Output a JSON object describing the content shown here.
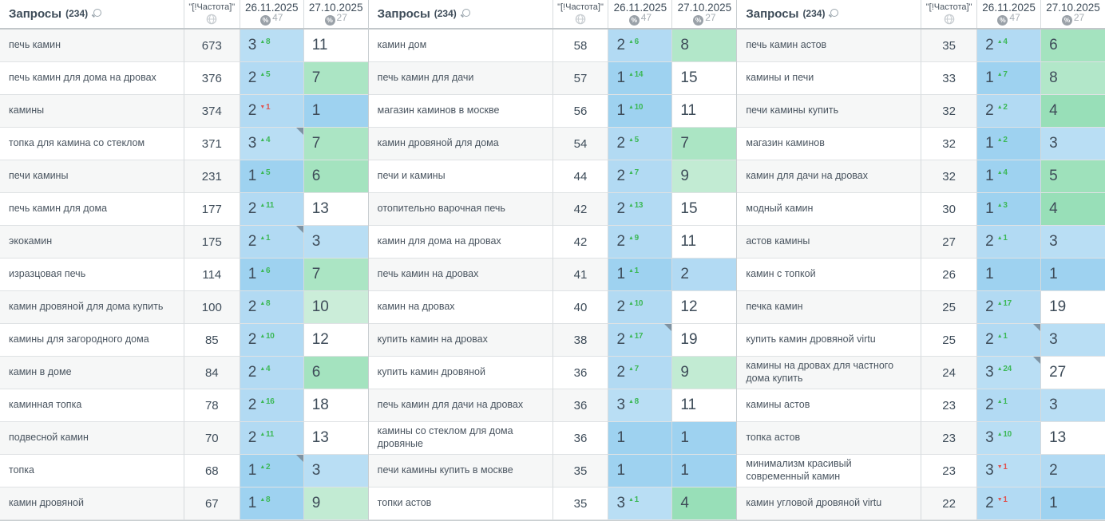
{
  "header": {
    "queries_label": "Запросы",
    "queries_count": "(234)",
    "frequency_label": "\"[!Частота]\"",
    "col1": {
      "date": "26.11.2025",
      "pct": "47"
    },
    "col2": {
      "date": "27.10.2025",
      "pct": "27"
    }
  },
  "colors": {
    "pos_blue_1": "#9ed2f0",
    "pos_blue_2": "#b2daf3",
    "pos_blue_3": "#b9def4",
    "pos_green_4": "#98dfb8",
    "pos_green_5": "#9ee1bb",
    "pos_green_6": "#a4e3bf",
    "pos_green_7": "#abe5c4",
    "pos_green_8": "#b2e7c9",
    "pos_green_9": "#c2ebd3",
    "pos_green_10": "#cbedd9",
    "pos_white": "#ffffff",
    "delta_up": "#3cb857",
    "delta_down": "#e0524f",
    "marker": "#7e93a3",
    "stripe": "#f6f7f7"
  },
  "groups": [
    {
      "rows": [
        {
          "q": "печь камин",
          "f": "673",
          "p1": 3,
          "d1": 8,
          "dir": "up",
          "m": false,
          "p2": 11
        },
        {
          "q": "печь камин для дома на дровах",
          "f": "376",
          "p1": 2,
          "d1": 5,
          "dir": "up",
          "m": false,
          "p2": 7
        },
        {
          "q": "камины",
          "f": "374",
          "p1": 2,
          "d1": 1,
          "dir": "down",
          "m": false,
          "p2": 1
        },
        {
          "q": "топка для камина со стеклом",
          "f": "371",
          "p1": 3,
          "d1": 4,
          "dir": "up",
          "m": true,
          "p2": 7
        },
        {
          "q": "печи камины",
          "f": "231",
          "p1": 1,
          "d1": 5,
          "dir": "up",
          "m": false,
          "p2": 6
        },
        {
          "q": "печь камин для дома",
          "f": "177",
          "p1": 2,
          "d1": 11,
          "dir": "up",
          "m": false,
          "p2": 13
        },
        {
          "q": "экокамин",
          "f": "175",
          "p1": 2,
          "d1": 1,
          "dir": "up",
          "m": true,
          "p2": 3
        },
        {
          "q": "изразцовая печь",
          "f": "114",
          "p1": 1,
          "d1": 6,
          "dir": "up",
          "m": false,
          "p2": 7
        },
        {
          "q": "камин дровяной для дома купить",
          "f": "100",
          "p1": 2,
          "d1": 8,
          "dir": "up",
          "m": false,
          "p2": 10
        },
        {
          "q": "камины для загородного дома",
          "f": "85",
          "p1": 2,
          "d1": 10,
          "dir": "up",
          "m": false,
          "p2": 12
        },
        {
          "q": "камин в доме",
          "f": "84",
          "p1": 2,
          "d1": 4,
          "dir": "up",
          "m": false,
          "p2": 6
        },
        {
          "q": "каминная топка",
          "f": "78",
          "p1": 2,
          "d1": 16,
          "dir": "up",
          "m": false,
          "p2": 18
        },
        {
          "q": "подвесной камин",
          "f": "70",
          "p1": 2,
          "d1": 11,
          "dir": "up",
          "m": false,
          "p2": 13
        },
        {
          "q": "топка",
          "f": "68",
          "p1": 1,
          "d1": 2,
          "dir": "up",
          "m": true,
          "p2": 3
        },
        {
          "q": "камин дровяной",
          "f": "67",
          "p1": 1,
          "d1": 8,
          "dir": "up",
          "m": false,
          "p2": 9
        }
      ]
    },
    {
      "rows": [
        {
          "q": "камин дом",
          "f": "58",
          "p1": 2,
          "d1": 6,
          "dir": "up",
          "m": false,
          "p2": 8
        },
        {
          "q": "печь камин для дачи",
          "f": "57",
          "p1": 1,
          "d1": 14,
          "dir": "up",
          "m": false,
          "p2": 15
        },
        {
          "q": "магазин каминов в москве",
          "f": "56",
          "p1": 1,
          "d1": 10,
          "dir": "up",
          "m": false,
          "p2": 11
        },
        {
          "q": "камин дровяной для дома",
          "f": "54",
          "p1": 2,
          "d1": 5,
          "dir": "up",
          "m": false,
          "p2": 7
        },
        {
          "q": "печи и камины",
          "f": "44",
          "p1": 2,
          "d1": 7,
          "dir": "up",
          "m": false,
          "p2": 9
        },
        {
          "q": "отопительно варочная печь",
          "f": "42",
          "p1": 2,
          "d1": 13,
          "dir": "up",
          "m": false,
          "p2": 15
        },
        {
          "q": "камин для дома на дровах",
          "f": "42",
          "p1": 2,
          "d1": 9,
          "dir": "up",
          "m": false,
          "p2": 11
        },
        {
          "q": "печь камин на дровах",
          "f": "41",
          "p1": 1,
          "d1": 1,
          "dir": "up",
          "m": false,
          "p2": 2
        },
        {
          "q": "камин на дровах",
          "f": "40",
          "p1": 2,
          "d1": 10,
          "dir": "up",
          "m": false,
          "p2": 12
        },
        {
          "q": "купить камин на дровах",
          "f": "38",
          "p1": 2,
          "d1": 17,
          "dir": "up",
          "m": true,
          "p2": 19
        },
        {
          "q": "купить камин дровяной",
          "f": "36",
          "p1": 2,
          "d1": 7,
          "dir": "up",
          "m": false,
          "p2": 9
        },
        {
          "q": "печь камин для дачи на дровах",
          "f": "36",
          "p1": 3,
          "d1": 8,
          "dir": "up",
          "m": false,
          "p2": 11
        },
        {
          "q": "камины со стеклом для дома дровяные",
          "f": "36",
          "p1": 1,
          "d1": null,
          "dir": null,
          "m": false,
          "p2": 1
        },
        {
          "q": "печи камины купить в москве",
          "f": "35",
          "p1": 1,
          "d1": null,
          "dir": null,
          "m": false,
          "p2": 1
        },
        {
          "q": "топки астов",
          "f": "35",
          "p1": 3,
          "d1": 1,
          "dir": "up",
          "m": false,
          "p2": 4
        }
      ]
    },
    {
      "rows": [
        {
          "q": "печь камин астов",
          "f": "35",
          "p1": 2,
          "d1": 4,
          "dir": "up",
          "m": false,
          "p2": 6
        },
        {
          "q": "камины и печи",
          "f": "33",
          "p1": 1,
          "d1": 7,
          "dir": "up",
          "m": false,
          "p2": 8
        },
        {
          "q": "печи камины купить",
          "f": "32",
          "p1": 2,
          "d1": 2,
          "dir": "up",
          "m": false,
          "p2": 4
        },
        {
          "q": "магазин каминов",
          "f": "32",
          "p1": 1,
          "d1": 2,
          "dir": "up",
          "m": false,
          "p2": 3
        },
        {
          "q": "камин для дачи на дровах",
          "f": "32",
          "p1": 1,
          "d1": 4,
          "dir": "up",
          "m": false,
          "p2": 5
        },
        {
          "q": "модный камин",
          "f": "30",
          "p1": 1,
          "d1": 3,
          "dir": "up",
          "m": false,
          "p2": 4
        },
        {
          "q": "астов камины",
          "f": "27",
          "p1": 2,
          "d1": 1,
          "dir": "up",
          "m": false,
          "p2": 3
        },
        {
          "q": "камин с топкой",
          "f": "26",
          "p1": 1,
          "d1": null,
          "dir": null,
          "m": false,
          "p2": 1
        },
        {
          "q": "печка камин",
          "f": "25",
          "p1": 2,
          "d1": 17,
          "dir": "up",
          "m": false,
          "p2": 19
        },
        {
          "q": "купить камин дровяной virtu",
          "f": "25",
          "p1": 2,
          "d1": 1,
          "dir": "up",
          "m": true,
          "p2": 3
        },
        {
          "q": "камины на дровах для частного дома купить",
          "f": "24",
          "p1": 3,
          "d1": 24,
          "dir": "up",
          "m": true,
          "p2": 27
        },
        {
          "q": "камины астов",
          "f": "23",
          "p1": 2,
          "d1": 1,
          "dir": "up",
          "m": false,
          "p2": 3
        },
        {
          "q": "топка астов",
          "f": "23",
          "p1": 3,
          "d1": 10,
          "dir": "up",
          "m": false,
          "p2": 13
        },
        {
          "q": "минимализм красивый современный камин",
          "f": "23",
          "p1": 3,
          "d1": 1,
          "dir": "down",
          "m": false,
          "p2": 2
        },
        {
          "q": "камин угловой дровяной virtu",
          "f": "22",
          "p1": 2,
          "d1": 1,
          "dir": "down",
          "m": false,
          "p2": 1
        }
      ]
    }
  ]
}
